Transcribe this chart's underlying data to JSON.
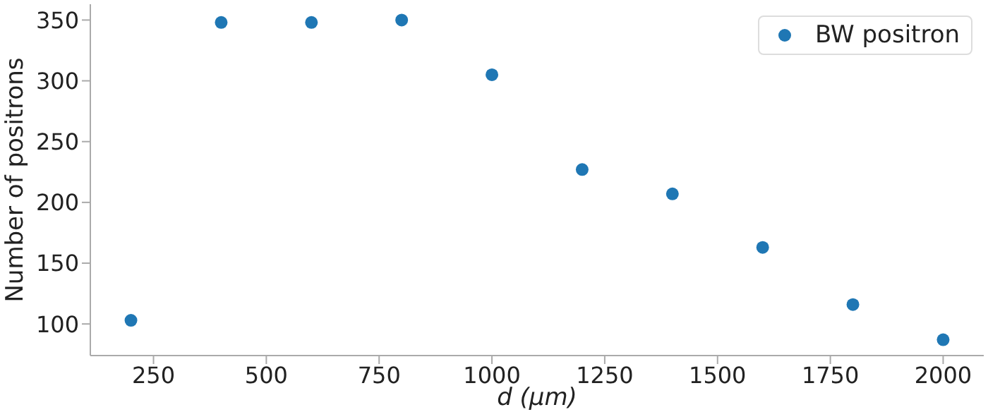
{
  "chart_data": {
    "type": "scatter",
    "xlabel": "d (μm)",
    "ylabel": "Number of positrons",
    "x": [
      200,
      400,
      600,
      800,
      1000,
      1200,
      1400,
      1600,
      1800,
      2000
    ],
    "series": [
      {
        "name": "BW positron",
        "color": "#1f77b4",
        "values": [
          103,
          348,
          348,
          350,
          305,
          227,
          207,
          163,
          116,
          87
        ]
      }
    ],
    "xlim": [
      110,
      2090
    ],
    "xticks": [
      250,
      500,
      750,
      1000,
      1250,
      1500,
      1750,
      2000
    ],
    "ylim": [
      74,
      363
    ],
    "yticks": [
      100,
      150,
      200,
      250,
      300,
      350
    ],
    "grid": false,
    "legend": "top right",
    "marker": "circle"
  }
}
